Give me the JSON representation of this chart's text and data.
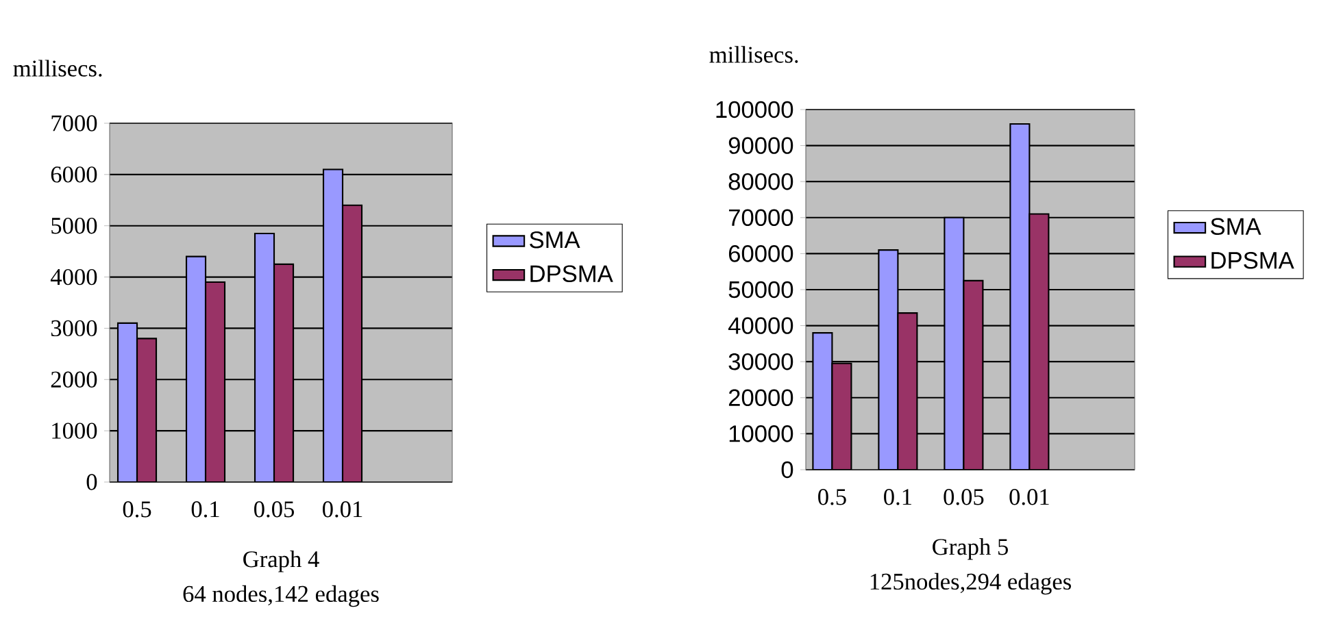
{
  "chart_data": [
    {
      "type": "bar",
      "title": "Graph 4",
      "subtitle": "64 nodes,142 edages",
      "ylabel": "millisecs.",
      "categories": [
        "0.5",
        "0.1",
        "0.05",
        "0.01"
      ],
      "series": [
        {
          "name": "SMA",
          "color": "#9999ff",
          "values": [
            3100,
            4400,
            4850,
            6100
          ]
        },
        {
          "name": "DPSMA",
          "color": "#993366",
          "values": [
            2800,
            3900,
            4250,
            5400
          ]
        }
      ],
      "ylim": [
        0,
        7000
      ],
      "yticks": [
        0,
        1000,
        2000,
        3000,
        4000,
        5000,
        6000,
        7000
      ],
      "grid": "y",
      "legend": "right"
    },
    {
      "type": "bar",
      "title": "Graph 5",
      "subtitle": "125nodes,294 edages",
      "ylabel": "millisecs.",
      "categories": [
        "0.5",
        "0.1",
        "0.05",
        "0.01"
      ],
      "series": [
        {
          "name": "SMA",
          "color": "#9999ff",
          "values": [
            38000,
            61000,
            70000,
            96000
          ]
        },
        {
          "name": "DPSMA",
          "color": "#993366",
          "values": [
            29500,
            43500,
            52500,
            71000
          ]
        }
      ],
      "ylim": [
        0,
        100000
      ],
      "yticks": [
        0,
        10000,
        20000,
        30000,
        40000,
        50000,
        60000,
        70000,
        80000,
        90000,
        100000
      ],
      "grid": "y",
      "legend": "right"
    }
  ]
}
